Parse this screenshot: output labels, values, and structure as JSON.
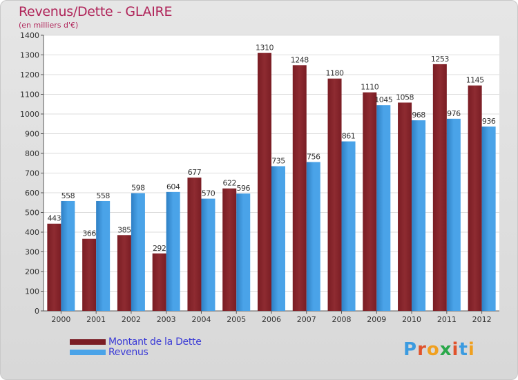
{
  "header": {
    "title": "Revenus/Dette - GLAIRE",
    "subtitle": "(en milliers d'€)"
  },
  "brand": {
    "logo_text": "Proxiti",
    "logo_colors": [
      "#3b9be0",
      "#e0522b",
      "#f0a020",
      "#2aa84a",
      "#e0522b",
      "#3b9be0",
      "#f0a020"
    ]
  },
  "colors": {
    "debt": "#7a1d24",
    "debt_light": "#8e2b31",
    "revenue": "#4aa3e8",
    "revenue_dark": "#2e7fc4",
    "title": "#b0255a",
    "legend_text": "#3a3ad6"
  },
  "chart_data": {
    "type": "bar",
    "categories": [
      "2000",
      "2001",
      "2002",
      "2003",
      "2004",
      "2005",
      "2006",
      "2007",
      "2008",
      "2009",
      "2010",
      "2011",
      "2012"
    ],
    "series": [
      {
        "name": "Montant de la Dette",
        "values": [
          443,
          366,
          385,
          292,
          677,
          622,
          1310,
          1248,
          1180,
          1110,
          1058,
          1253,
          1145
        ]
      },
      {
        "name": "Revenus",
        "values": [
          558,
          558,
          598,
          604,
          570,
          596,
          735,
          756,
          861,
          1045,
          968,
          976,
          936
        ]
      }
    ],
    "title": "Revenus/Dette - GLAIRE",
    "subtitle": "(en milliers d'€)",
    "ylim": [
      0,
      1400
    ],
    "yticks": [
      0,
      100,
      200,
      300,
      400,
      500,
      600,
      700,
      800,
      900,
      1000,
      1100,
      1200,
      1300,
      1400
    ],
    "grid": true,
    "legend_position": "bottom-left"
  }
}
